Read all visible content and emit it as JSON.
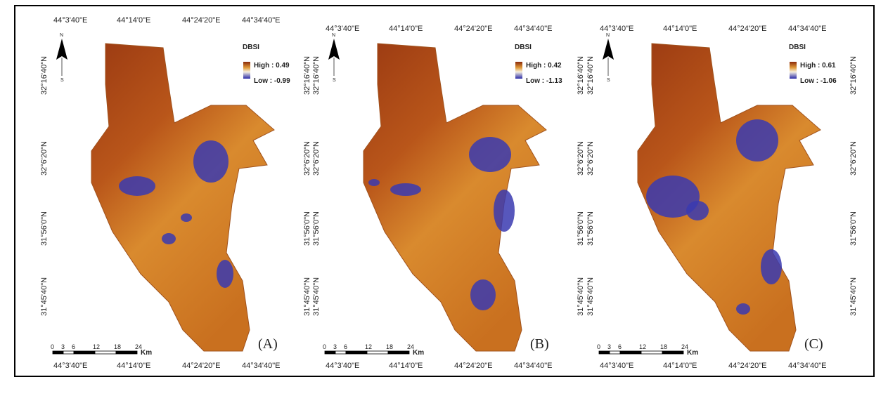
{
  "panels": [
    {
      "label": "(A)",
      "legend": {
        "title": "DBSI",
        "high": "High : 0.49",
        "low": "Low : -0.99"
      },
      "north": "N",
      "south": "S",
      "top_labels": [
        "44°3'40\"E",
        "44°14'0\"E",
        "44°24'20\"E",
        "44°34'40\"E"
      ],
      "bottom_labels": [
        "44°3'40\"E",
        "44°14'0\"E",
        "44°24'20\"E",
        "44°34'40\"E"
      ],
      "left_labels": [
        "32°16'40\"N",
        "32°6'20\"N",
        "31°56'0\"N",
        "31°45'40\"N"
      ],
      "right_labels": [
        "32°16'40\"N",
        "32°6'20\"N",
        "31°56'0\"N",
        "31°45'40\"N"
      ],
      "scale": {
        "ticks": [
          "0",
          "3",
          "6",
          "12",
          "18",
          "24"
        ],
        "unit": "Km"
      }
    },
    {
      "label": "(B)",
      "legend": {
        "title": "DBSI",
        "high": "High : 0.42",
        "low": "Low : -1.13"
      },
      "north": "N",
      "south": "S",
      "top_labels": [
        "44°3'40\"E",
        "44°14'0\"E",
        "44°24'20\"E",
        "44°34'40\"E"
      ],
      "bottom_labels": [
        "44°3'40\"E",
        "44°14'0\"E",
        "44°24'20\"E",
        "44°34'40\"E"
      ],
      "left_labels": [
        "32°16'40\"N",
        "32°6'20\"N",
        "31°56'0\"N",
        "31°45'40\"N"
      ],
      "right_labels": [
        "32°16'40\"N",
        "32°6'20\"N",
        "31°56'0\"N",
        "31°45'40\"N"
      ],
      "scale": {
        "ticks": [
          "0",
          "3",
          "6",
          "12",
          "18",
          "24"
        ],
        "unit": "Km"
      }
    },
    {
      "label": "(C)",
      "legend": {
        "title": "DBSI",
        "high": "High : 0.61",
        "low": "Low : -1.06"
      },
      "north": "N",
      "south": "S",
      "top_labels": [
        "44°3'40\"E",
        "44°14'0\"E",
        "44°24'20\"E",
        "44°34'40\"E"
      ],
      "bottom_labels": [
        "44°3'40\"E",
        "44°14'0\"E",
        "44°24'20\"E",
        "44°34'40\"E"
      ],
      "left_labels": [
        "32°16'40\"N",
        "32°6'20\"N",
        "31°56'0\"N",
        "31°45'40\"N"
      ],
      "right_labels": [
        "32°16'40\"N",
        "32°6'20\"N",
        "31°56'0\"N",
        "31°45'40\"N"
      ],
      "scale": {
        "ticks": [
          "0",
          "3",
          "6",
          "12",
          "18",
          "24"
        ],
        "unit": "Km"
      }
    }
  ]
}
